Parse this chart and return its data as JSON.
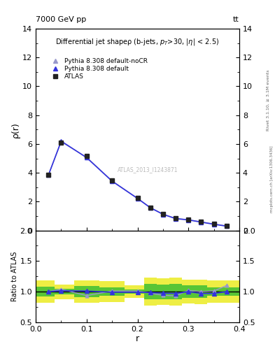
{
  "title_top_left": "7000 GeV pp",
  "title_top_right": "tt",
  "main_title": "Differential jet shapeρ (b-jets, p_{T}>30, |η| < 2.5)",
  "ylabel_main": "ρ(r)",
  "ylabel_ratio": "Ratio to ATLAS",
  "xlabel": "r",
  "rivet_label": "Rivet 3.1.10, ≥ 3.1M events",
  "mcplots_label": "mcplots.cern.ch [arXiv:1306.3436]",
  "watermark": "ATLAS_2013_I1243871",
  "x_data": [
    0.025,
    0.05,
    0.1,
    0.15,
    0.2,
    0.225,
    0.25,
    0.275,
    0.3,
    0.325,
    0.35,
    0.375
  ],
  "atlas_y": [
    3.85,
    6.1,
    5.15,
    3.45,
    2.25,
    1.6,
    1.15,
    0.85,
    0.75,
    0.6,
    0.45,
    0.32
  ],
  "pythia_default_y": [
    3.85,
    6.2,
    5.05,
    3.42,
    2.22,
    1.58,
    1.12,
    0.82,
    0.73,
    0.58,
    0.43,
    0.3
  ],
  "pythia_nocr_y": [
    3.85,
    6.15,
    5.08,
    3.44,
    2.24,
    1.6,
    1.14,
    0.84,
    0.75,
    0.6,
    0.45,
    0.32
  ],
  "ratio_default_y": [
    1.0,
    1.015,
    1.01,
    0.99,
    0.99,
    0.985,
    0.975,
    0.97,
    1.0,
    0.97,
    0.97,
    1.0
  ],
  "ratio_nocr_y": [
    1.0,
    1.04,
    0.935,
    1.01,
    1.01,
    0.975,
    0.94,
    0.93,
    1.02,
    1.0,
    1.01,
    1.1
  ],
  "green_band_xedges": [
    0.0,
    0.025,
    0.075,
    0.125,
    0.175,
    0.2125,
    0.2375,
    0.2625,
    0.2875,
    0.3125,
    0.3375,
    0.3625,
    0.4
  ],
  "green_band_y1": [
    0.92,
    0.95,
    0.91,
    0.93,
    0.97,
    0.87,
    0.88,
    0.87,
    0.9,
    0.9,
    0.93,
    0.93
  ],
  "green_band_y2": [
    1.08,
    1.05,
    1.09,
    1.07,
    1.03,
    1.13,
    1.12,
    1.13,
    1.1,
    1.1,
    1.07,
    1.07
  ],
  "yellow_band_y1": [
    0.82,
    0.88,
    0.82,
    0.83,
    0.9,
    0.77,
    0.78,
    0.77,
    0.81,
    0.8,
    0.82,
    0.82
  ],
  "yellow_band_y2": [
    1.18,
    1.12,
    1.18,
    1.17,
    1.1,
    1.23,
    1.22,
    1.23,
    1.19,
    1.2,
    1.18,
    1.18
  ],
  "xlim": [
    0.0,
    0.4
  ],
  "ylim_main": [
    0,
    14
  ],
  "ylim_ratio": [
    0.5,
    2.0
  ],
  "yticks_main": [
    0,
    2,
    4,
    6,
    8,
    10,
    12,
    14
  ],
  "yticks_ratio": [
    0.5,
    1.0,
    1.5,
    2.0
  ],
  "xticks": [
    0.0,
    0.1,
    0.2,
    0.3,
    0.4
  ],
  "color_atlas": "#222222",
  "color_default": "#3333dd",
  "color_nocr": "#9999cc",
  "color_green": "#33bb33",
  "color_yellow": "#eeee44",
  "bg_color": "#ffffff"
}
